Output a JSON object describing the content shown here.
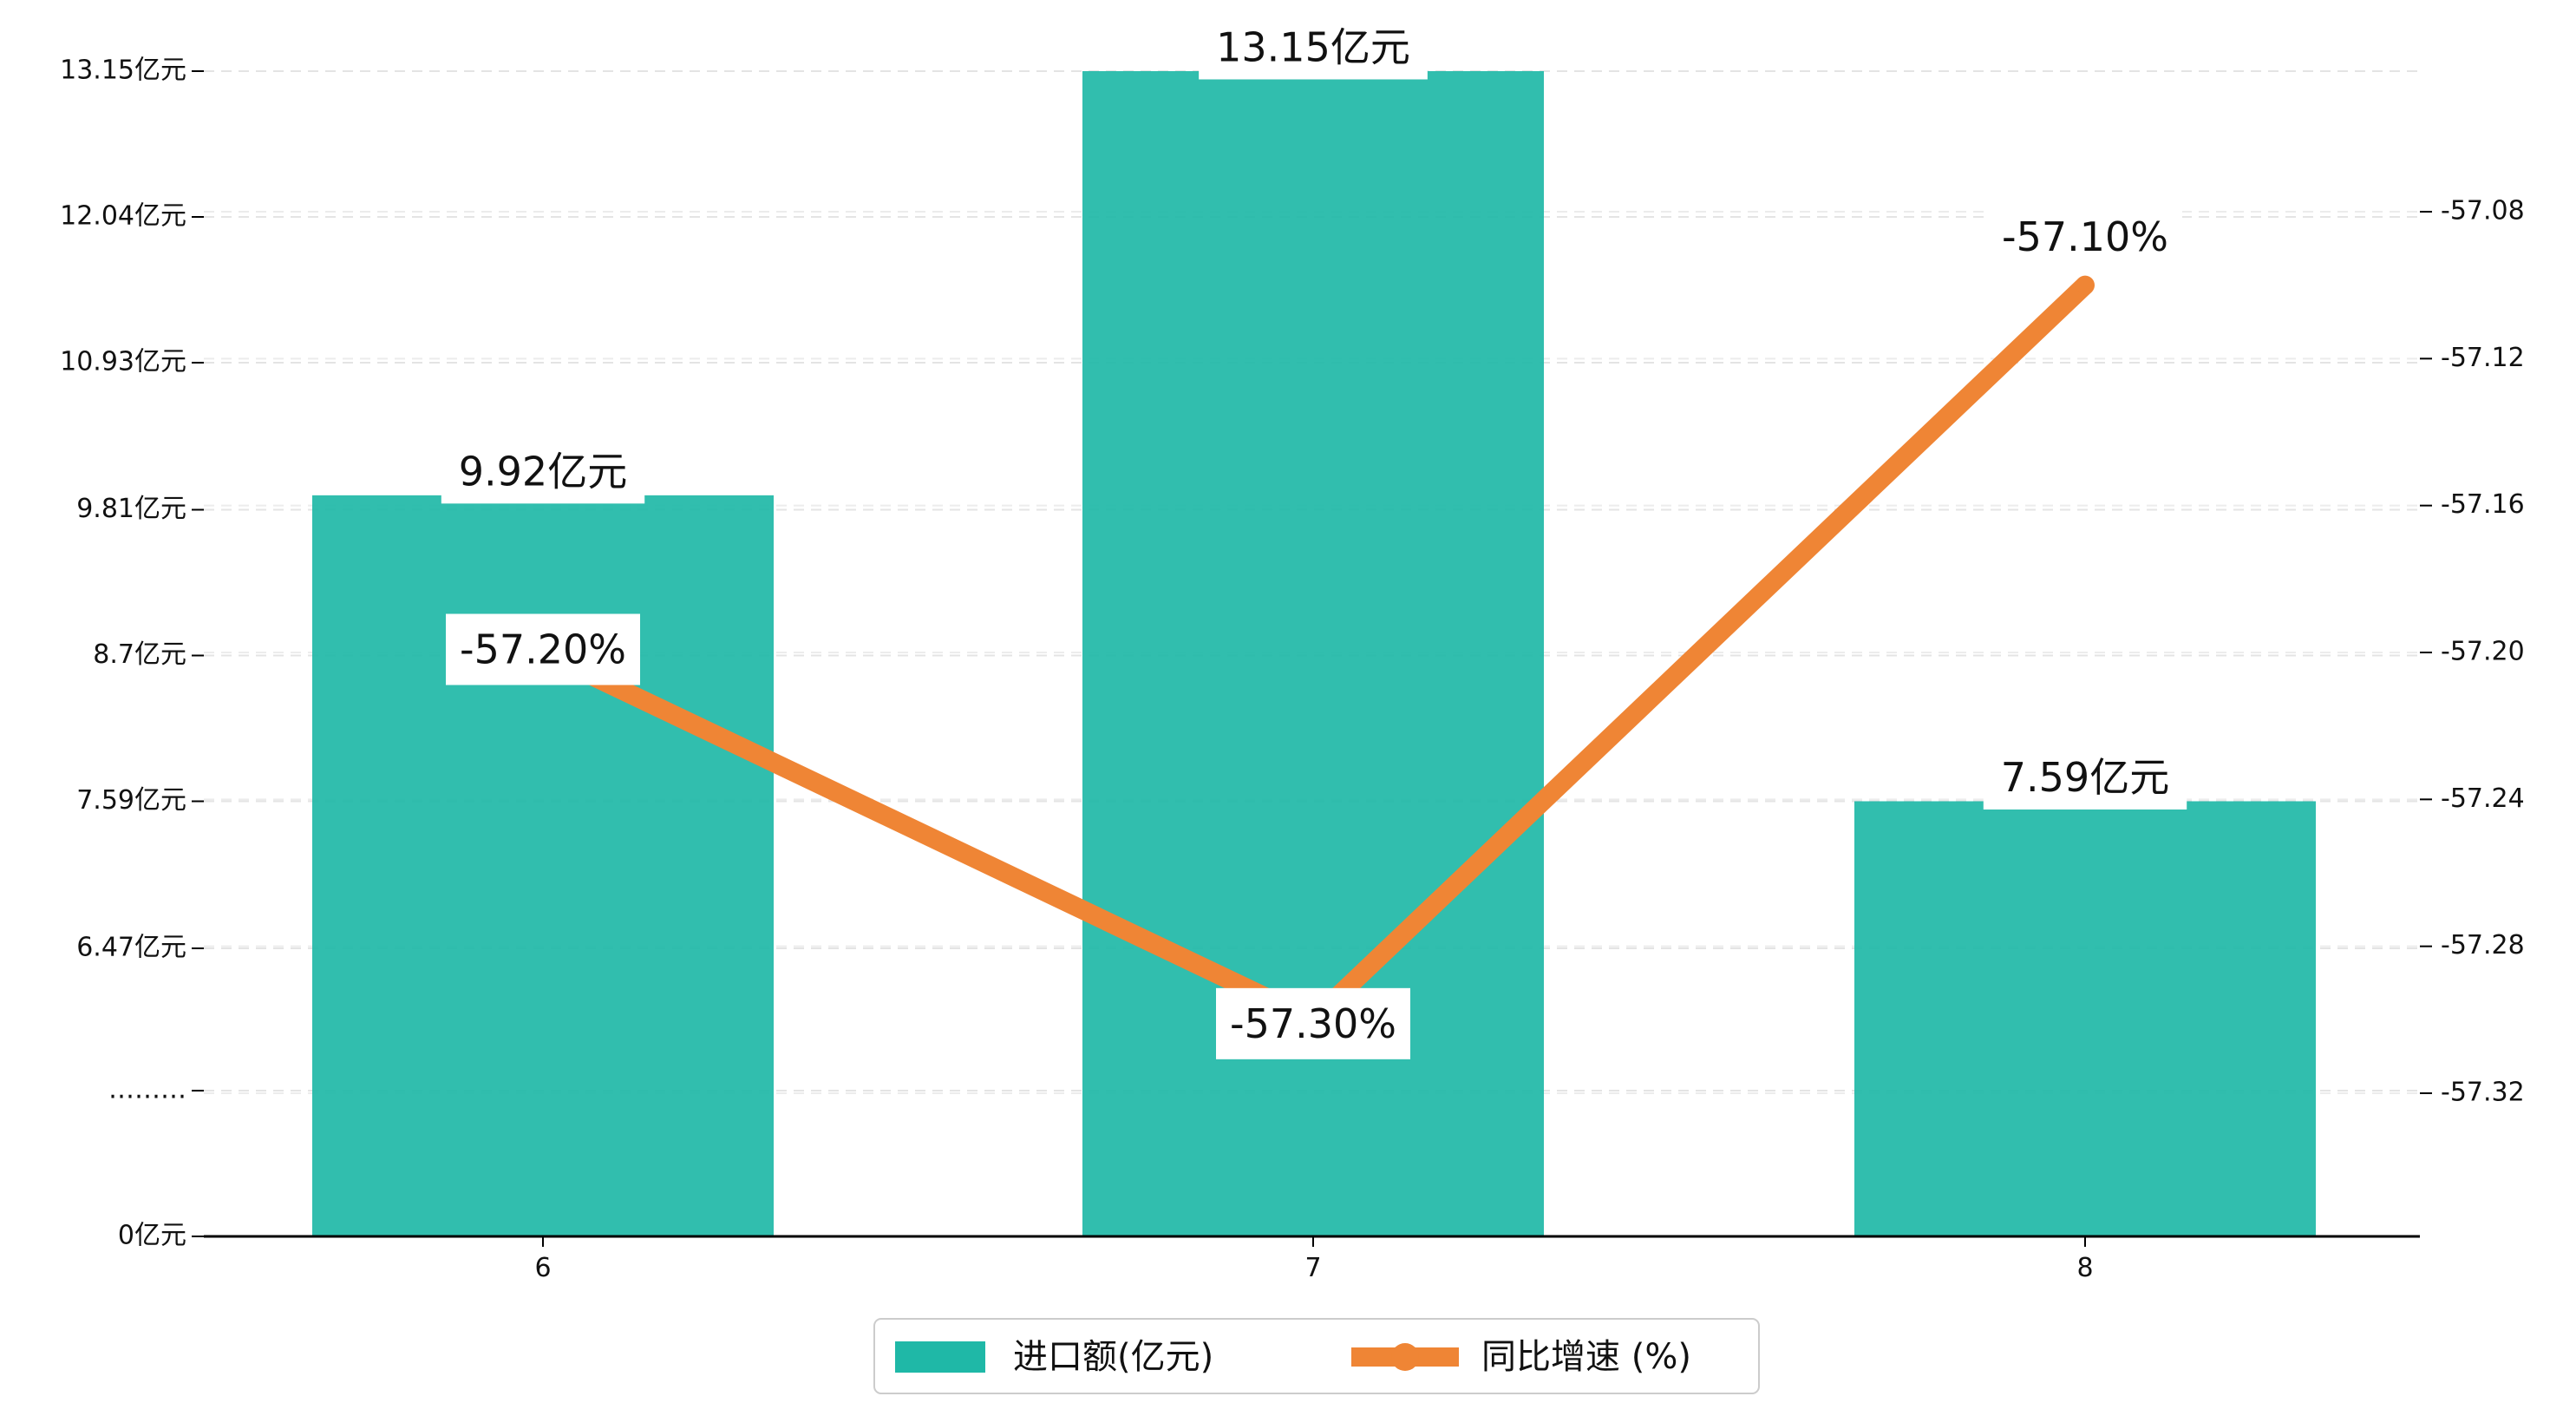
{
  "chart_data": {
    "type": "bar",
    "categories": [
      "6",
      "7",
      "8"
    ],
    "series": [
      {
        "name": "进口额(亿元)",
        "type": "bar",
        "axis": "left",
        "values": [
          9.92,
          13.15,
          7.59
        ],
        "value_labels": [
          "9.92亿元",
          "13.15亿元",
          "7.59亿元"
        ],
        "color": "#1fb8a7"
      },
      {
        "name": "同比增速 (%)",
        "type": "line",
        "axis": "right",
        "values": [
          -57.2,
          -57.3,
          -57.1
        ],
        "value_labels": [
          "-57.20%",
          "-57.30%",
          "-57.10%"
        ],
        "color": "#ef8535"
      }
    ],
    "left_axis": {
      "ylim": [
        0,
        13.15
      ],
      "ticks": [
        {
          "value": 0,
          "label": "0亿元"
        },
        {
          "value": 5.0,
          "label": "………"
        },
        {
          "value": 6.47,
          "label": "6.47亿元"
        },
        {
          "value": 7.59,
          "label": "7.59亿元"
        },
        {
          "value": 8.7,
          "label": "8.7亿元"
        },
        {
          "value": 9.81,
          "label": "9.81亿元"
        },
        {
          "value": 10.93,
          "label": "10.93亿元"
        },
        {
          "value": 12.04,
          "label": "12.04亿元"
        },
        {
          "value": 13.15,
          "label": "13.15亿元"
        }
      ],
      "axis_break": true
    },
    "right_axis": {
      "ylim": [
        -57.35,
        -57.05
      ],
      "ticks": [
        -57.32,
        -57.28,
        -57.24,
        -57.2,
        -57.16,
        -57.12,
        -57.08
      ],
      "tick_labels": [
        "-57.32",
        "-57.28",
        "-57.24",
        "-57.20",
        "-57.16",
        "-57.12",
        "-57.08"
      ]
    },
    "grid": true,
    "legend_position": "bottom-center",
    "title": "",
    "xlabel": "",
    "ylabel": ""
  }
}
